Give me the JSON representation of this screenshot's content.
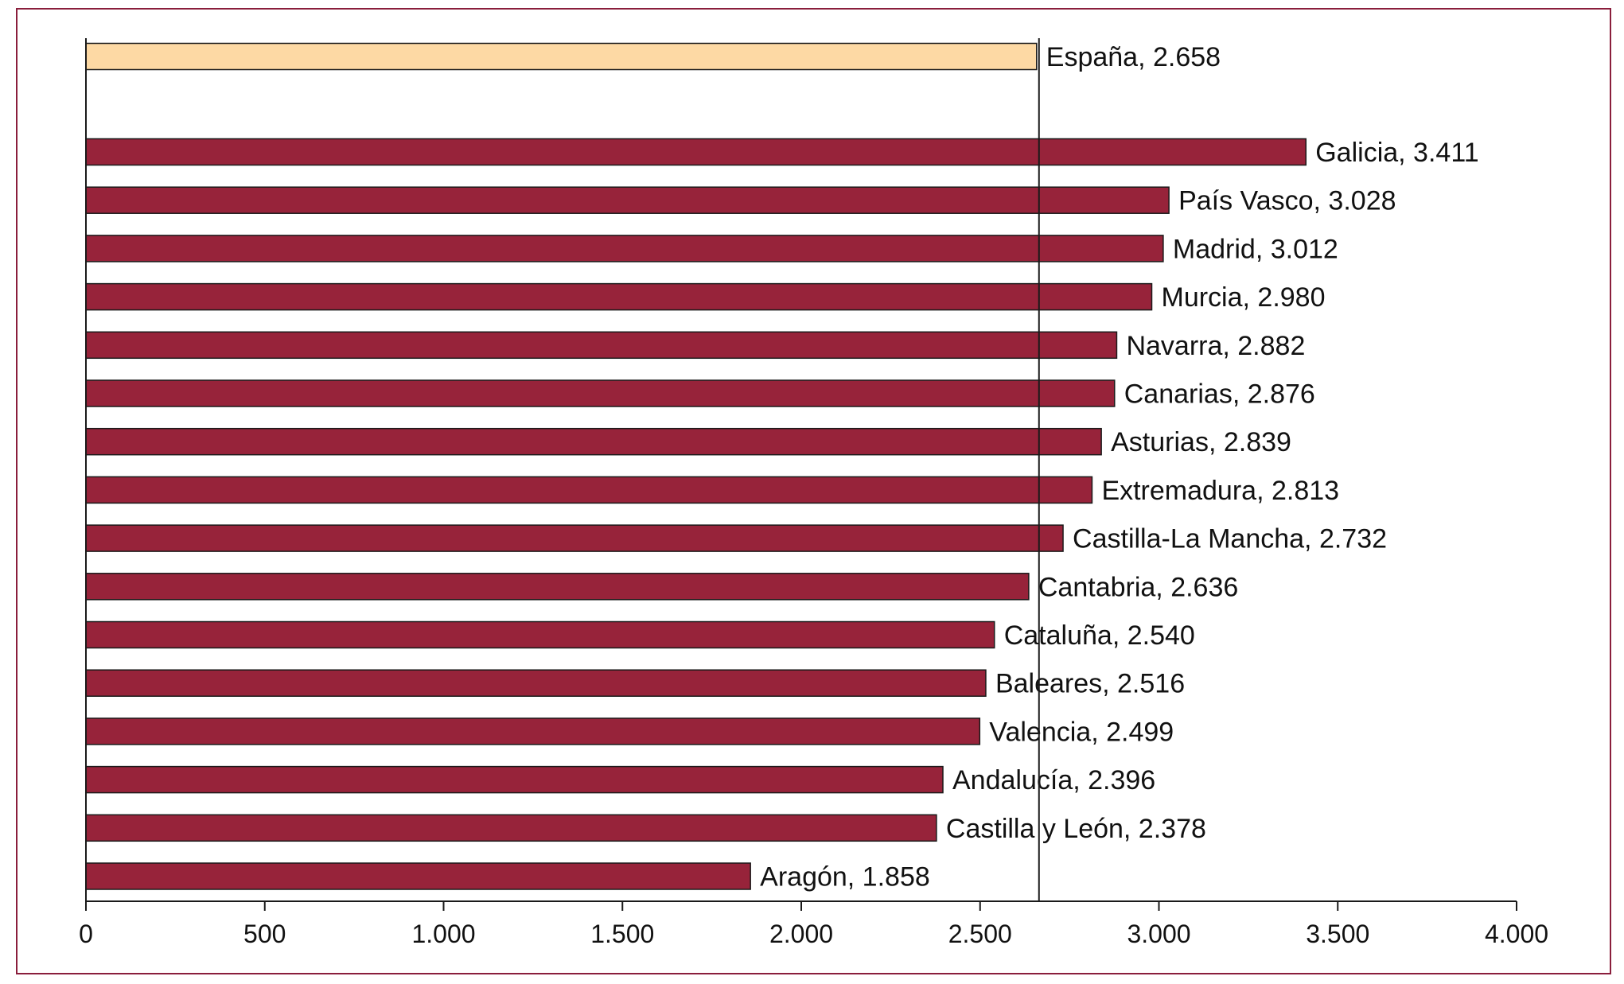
{
  "chart_data": {
    "type": "bar",
    "orientation": "horizontal",
    "title": "",
    "xlabel": "",
    "ylabel": "",
    "xlim": [
      0,
      4000
    ],
    "x_ticks": [
      0,
      500,
      1000,
      1500,
      2000,
      2500,
      3000,
      3500,
      4000
    ],
    "x_tick_labels": [
      "0",
      "500",
      "1.000",
      "1.500",
      "2.000",
      "2.500",
      "3.000",
      "3.500",
      "4.000"
    ],
    "reference_line": {
      "value": 2658,
      "label": "España"
    },
    "colors": {
      "reference_bar": "#fdd9a4",
      "region_bar": "#97233a",
      "frame": "#8a1e3c",
      "edge": "#1a1a1a"
    },
    "bars": [
      {
        "category": "España",
        "value": 2658,
        "label": "España, 2.658",
        "kind": "reference"
      },
      {
        "category": "Galicia",
        "value": 3411,
        "label": "Galicia, 3.411",
        "kind": "region"
      },
      {
        "category": "País Vasco",
        "value": 3028,
        "label": "País Vasco, 3.028",
        "kind": "region"
      },
      {
        "category": "Madrid",
        "value": 3012,
        "label": "Madrid, 3.012",
        "kind": "region"
      },
      {
        "category": "Murcia",
        "value": 2980,
        "label": "Murcia, 2.980",
        "kind": "region"
      },
      {
        "category": "Navarra",
        "value": 2882,
        "label": "Navarra, 2.882",
        "kind": "region"
      },
      {
        "category": "Canarias",
        "value": 2876,
        "label": "Canarias, 2.876",
        "kind": "region"
      },
      {
        "category": "Asturias",
        "value": 2839,
        "label": "Asturias, 2.839",
        "kind": "region"
      },
      {
        "category": "Extremadura",
        "value": 2813,
        "label": "Extremadura, 2.813",
        "kind": "region"
      },
      {
        "category": "Castilla-La Mancha",
        "value": 2732,
        "label": "Castilla-La Mancha, 2.732",
        "kind": "region"
      },
      {
        "category": "Cantabria",
        "value": 2636,
        "label": "Cantabria, 2.636",
        "kind": "region"
      },
      {
        "category": "Cataluña",
        "value": 2540,
        "label": "Cataluña, 2.540",
        "kind": "region"
      },
      {
        "category": "Baleares",
        "value": 2516,
        "label": "Baleares, 2.516",
        "kind": "region"
      },
      {
        "category": "Valencia",
        "value": 2499,
        "label": "Valencia, 2.499",
        "kind": "region"
      },
      {
        "category": "Andalucía",
        "value": 2396,
        "label": "Andalucía, 2.396",
        "kind": "region"
      },
      {
        "category": "Castilla y León",
        "value": 2378,
        "label": "Castilla y León, 2.378",
        "kind": "region"
      },
      {
        "category": "Aragón",
        "value": 1858,
        "label": "Aragón, 1.858",
        "kind": "region"
      }
    ]
  }
}
